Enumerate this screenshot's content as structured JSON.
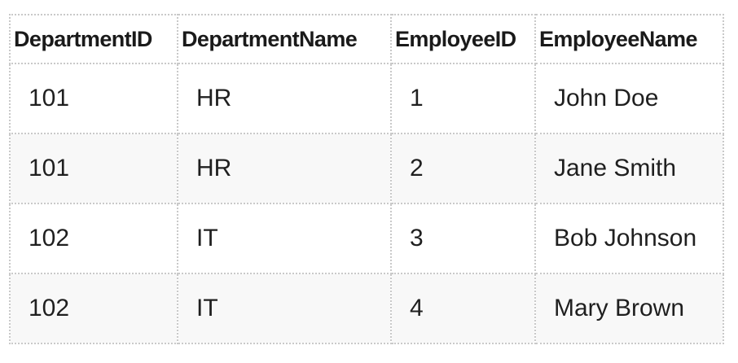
{
  "table": {
    "columns": [
      "DepartmentID",
      "DepartmentName",
      "EmployeeID",
      "EmployeeName"
    ],
    "rows": [
      [
        "101",
        "HR",
        "1",
        "John Doe"
      ],
      [
        "101",
        "HR",
        "2",
        "Jane Smith"
      ],
      [
        "102",
        "IT",
        "3",
        "Bob Johnson"
      ],
      [
        "102",
        "IT",
        "4",
        "Mary Brown"
      ]
    ]
  }
}
